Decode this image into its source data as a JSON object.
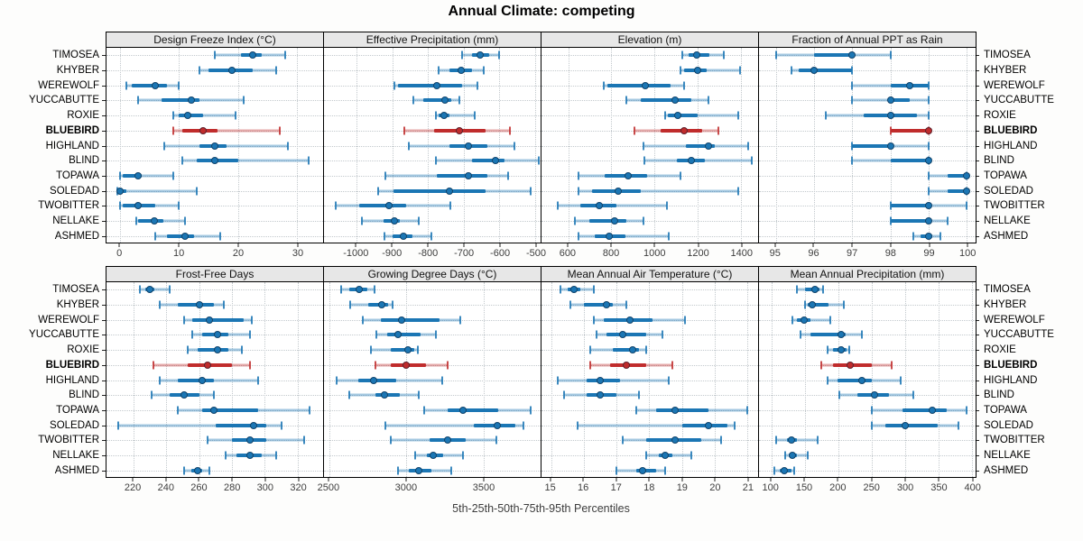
{
  "title": "Annual Climate: competing",
  "footer": "5th-25th-50th-75th-95th Percentiles",
  "colors": {
    "series": "#1b76b4",
    "series_light": "rgba(27,118,180,0.40)",
    "highlight": "#c02c2c",
    "highlight_light": "rgba(192,44,44,0.40)",
    "strip_bg": "#e7e7e7",
    "grid": "#c3c9cd",
    "axis_text": "#3d3d3d",
    "border": "#000000"
  },
  "chart_data": {
    "type": "dotplot-trellis",
    "title": "Annual Climate: competing",
    "caption": "5th-25th-50th-75th-95th Percentiles",
    "percentile_levels": [
      5,
      25,
      50,
      75,
      95
    ],
    "legend_position": "none",
    "grid": "dotted",
    "sites": [
      "TIMOSEA",
      "KHYBER",
      "WEREWOLF",
      "YUCCABUTTE",
      "ROXIE",
      "BLUEBIRD",
      "HIGHLAND",
      "BLIND",
      "TOPAWA",
      "SOLEDAD",
      "TWOBITTER",
      "NELLAKE",
      "ASHMED"
    ],
    "highlight_site": "BLUEBIRD",
    "panels": [
      {
        "title": "Design Freeze Index (°C)",
        "band": "top",
        "xlim": [
          -2.3,
          34.4
        ],
        "ticks": [
          0,
          10,
          20,
          30
        ],
        "percentiles": [
          [
            16,
            20.5,
            22.5,
            24,
            28
          ],
          [
            13.5,
            15,
            19,
            22.5,
            26.5
          ],
          [
            1,
            2,
            6,
            8,
            10
          ],
          [
            3,
            7,
            12,
            13.5,
            21
          ],
          [
            9,
            10,
            11.5,
            14,
            19.5
          ],
          [
            9,
            10.5,
            14,
            16.5,
            27
          ],
          [
            7.5,
            13.5,
            16,
            18,
            28.5
          ],
          [
            10.5,
            13,
            16,
            20,
            32
          ],
          [
            0,
            0.5,
            3,
            3.6,
            9
          ],
          [
            -0.5,
            -0.2,
            0,
            1,
            13
          ],
          [
            0,
            0.5,
            3,
            6,
            10
          ],
          [
            2.8,
            3.1,
            5.8,
            7.4,
            11
          ],
          [
            6,
            8,
            11,
            12.5,
            17
          ]
        ]
      },
      {
        "title": "Effective Precipitation (mm)",
        "band": "top",
        "xlim": [
          -1091,
          -485
        ],
        "ticks": [
          -1000,
          -900,
          -800,
          -700,
          -600,
          -500
        ],
        "percentiles": [
          [
            -705,
            -678,
            -655,
            -630,
            -601
          ],
          [
            -770,
            -740,
            -706,
            -678,
            -643
          ],
          [
            -893,
            -884,
            -775,
            -705,
            -661
          ],
          [
            -842,
            -812,
            -752,
            -734,
            -713
          ],
          [
            -778,
            -770,
            -756,
            -740,
            -669
          ],
          [
            -866,
            -783,
            -713,
            -638,
            -572
          ],
          [
            -853,
            -739,
            -688,
            -634,
            -559
          ],
          [
            -778,
            -677,
            -612,
            -586,
            -490
          ],
          [
            -920,
            -775,
            -687,
            -633,
            -575
          ],
          [
            -940,
            -897,
            -741,
            -640,
            -514
          ],
          [
            -1058,
            -993,
            -909,
            -860,
            -737
          ],
          [
            -985,
            -925,
            -894,
            -878,
            -826
          ],
          [
            -922,
            -900,
            -868,
            -843,
            -791
          ]
        ]
      },
      {
        "title": "Elevation (m)",
        "band": "top",
        "xlim": [
          476,
          1480
        ],
        "ticks": [
          600,
          800,
          1000,
          1200,
          1400
        ],
        "percentiles": [
          [
            1128,
            1158,
            1197,
            1255,
            1321
          ],
          [
            1120,
            1138,
            1200,
            1240,
            1395
          ],
          [
            763,
            780,
            958,
            1075,
            1138
          ],
          [
            870,
            938,
            1097,
            1172,
            1248
          ],
          [
            1048,
            1062,
            1106,
            1200,
            1390
          ],
          [
            908,
            1028,
            1138,
            1220,
            1296
          ],
          [
            949,
            1145,
            1248,
            1280,
            1434
          ],
          [
            954,
            1103,
            1170,
            1234,
            1450
          ],
          [
            646,
            770,
            879,
            966,
            1120
          ],
          [
            646,
            710,
            830,
            938,
            1390
          ],
          [
            552,
            655,
            745,
            825,
            1059
          ],
          [
            630,
            697,
            814,
            869,
            949
          ],
          [
            646,
            724,
            789,
            866,
            1065
          ]
        ]
      },
      {
        "title": "Fraction of Annual PPT as Rain",
        "band": "top",
        "xlim": [
          94.56,
          100.23
        ],
        "ticks": [
          95,
          96,
          97,
          98,
          99,
          100
        ],
        "percentiles": [
          [
            95,
            96,
            97,
            97,
            98
          ],
          [
            95.4,
            95.6,
            96,
            97,
            97
          ],
          [
            97,
            98,
            98.5,
            99,
            99
          ],
          [
            97,
            98,
            98,
            98.5,
            99
          ],
          [
            96.3,
            97.3,
            98,
            98.7,
            99
          ],
          [
            98,
            98,
            99,
            99,
            99
          ],
          [
            97,
            97,
            98,
            98,
            99
          ],
          [
            97,
            98,
            99,
            99,
            99
          ],
          [
            99,
            99.5,
            100,
            100,
            100
          ],
          [
            99,
            99.5,
            100,
            100,
            100
          ],
          [
            98,
            98,
            99,
            99,
            100
          ],
          [
            98,
            98,
            99,
            99,
            99.5
          ],
          [
            98.6,
            98.8,
            99,
            99.1,
            99.3
          ]
        ]
      },
      {
        "title": "Frost-Free Days",
        "band": "bottom",
        "xlim": [
          203.6,
          335.5
        ],
        "ticks": [
          220,
          240,
          260,
          280,
          300,
          320
        ],
        "percentiles": [
          [
            224,
            227,
            230,
            233,
            242
          ],
          [
            236,
            247,
            260,
            269,
            275
          ],
          [
            251,
            256,
            266,
            287,
            292
          ],
          [
            256,
            262,
            271,
            278,
            291
          ],
          [
            253,
            259,
            271,
            278,
            286
          ],
          [
            232,
            253,
            265,
            280,
            291
          ],
          [
            236,
            247,
            262,
            269,
            296
          ],
          [
            231,
            242,
            251,
            260,
            269
          ],
          [
            247,
            262,
            269,
            296,
            327
          ],
          [
            211,
            270,
            293,
            301,
            310
          ],
          [
            265,
            280,
            291,
            301,
            324
          ],
          [
            276,
            283,
            291,
            298,
            307
          ],
          [
            251,
            255,
            259,
            262,
            266
          ]
        ]
      },
      {
        "title": "Growing Degree Days (°C)",
        "band": "bottom",
        "xlim": [
          2466,
          3872
        ],
        "ticks": [
          2500,
          3000,
          3500
        ],
        "percentiles": [
          [
            2580,
            2630,
            2696,
            2745,
            2794
          ],
          [
            2637,
            2755,
            2839,
            2880,
            2912
          ],
          [
            2716,
            2833,
            2971,
            3216,
            3349
          ],
          [
            2808,
            2878,
            2945,
            3094,
            3192
          ],
          [
            2769,
            2902,
            3010,
            3049,
            3078
          ],
          [
            2800,
            2902,
            3000,
            3127,
            3271
          ],
          [
            2549,
            2686,
            2790,
            2937,
            3231
          ],
          [
            2631,
            2800,
            2859,
            2961,
            3082
          ],
          [
            3118,
            3271,
            3369,
            3598,
            3808
          ],
          [
            2867,
            3441,
            3588,
            3706,
            3761
          ],
          [
            2898,
            3153,
            3271,
            3388,
            3584
          ],
          [
            3055,
            3133,
            3173,
            3239,
            3369
          ],
          [
            2945,
            3016,
            3082,
            3161,
            3294
          ]
        ]
      },
      {
        "title": "Mean Annual Air Temperature (°C)",
        "band": "bottom",
        "xlim": [
          14.71,
          21.33
        ],
        "ticks": [
          15,
          16,
          17,
          18,
          19,
          20,
          21
        ],
        "percentiles": [
          [
            15.3,
            15.5,
            15.7,
            15.9,
            16.3
          ],
          [
            15.6,
            16.0,
            16.7,
            16.9,
            17.3
          ],
          [
            16.3,
            16.6,
            17.4,
            18.1,
            19.1
          ],
          [
            16.4,
            16.7,
            17.2,
            17.9,
            18.4
          ],
          [
            16.2,
            16.9,
            17.5,
            17.7,
            17.9
          ],
          [
            16.2,
            16.8,
            17.3,
            17.9,
            18.7
          ],
          [
            15.2,
            16.1,
            16.5,
            17.1,
            18.6
          ],
          [
            15.4,
            16.1,
            16.5,
            17.0,
            17.7
          ],
          [
            17.6,
            18.2,
            18.8,
            19.8,
            21.0
          ],
          [
            15.8,
            19.0,
            19.8,
            20.4,
            20.6
          ],
          [
            17.2,
            17.9,
            18.8,
            19.6,
            20.2
          ],
          [
            17.9,
            18.3,
            18.5,
            18.7,
            19.3
          ],
          [
            17.0,
            17.6,
            17.8,
            18.2,
            18.5
          ]
        ]
      },
      {
        "title": "Mean Annual Precipitation (mm)",
        "band": "bottom",
        "xlim": [
          81.7,
          405.7
        ],
        "ticks": [
          100,
          150,
          200,
          250,
          300,
          350,
          400
        ],
        "percentiles": [
          [
            139,
            150,
            165,
            172,
            177
          ],
          [
            150,
            155,
            162,
            186,
            208
          ],
          [
            132,
            139,
            149,
            159,
            188
          ],
          [
            144,
            159,
            205,
            211,
            235
          ],
          [
            184,
            193,
            204,
            212,
            217
          ],
          [
            175,
            192,
            218,
            251,
            280
          ],
          [
            184,
            199,
            235,
            251,
            294
          ],
          [
            202,
            229,
            255,
            276,
            313
          ],
          [
            250,
            296,
            341,
            363,
            392
          ],
          [
            251,
            271,
            300,
            349,
            380
          ],
          [
            107,
            123,
            130,
            139,
            169
          ],
          [
            121,
            126,
            131,
            139,
            154
          ],
          [
            105,
            113,
            120,
            130,
            135
          ]
        ]
      }
    ]
  }
}
